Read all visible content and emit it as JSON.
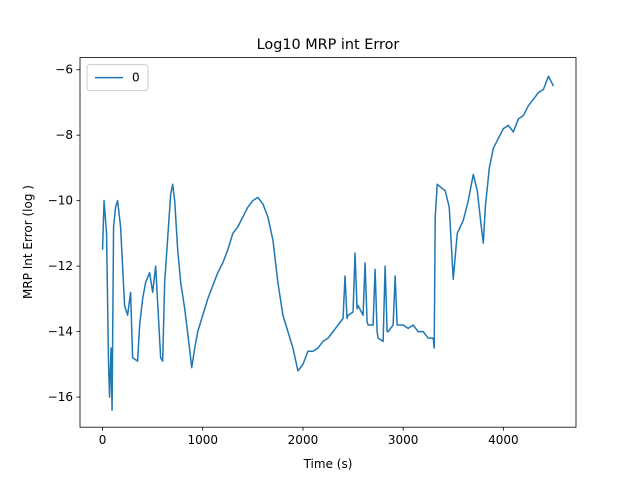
{
  "chart_data": {
    "type": "line",
    "title": "Log10 MRP int Error",
    "x_label": "Time (s)",
    "y_label": "MRP Int Error (log )",
    "x": [
      0,
      15,
      40,
      60,
      70,
      85,
      95,
      110,
      130,
      150,
      180,
      200,
      220,
      250,
      280,
      300,
      350,
      370,
      400,
      430,
      470,
      500,
      530,
      580,
      600,
      620,
      680,
      700,
      720,
      750,
      780,
      820,
      860,
      890,
      920,
      950,
      1000,
      1050,
      1100,
      1150,
      1200,
      1250,
      1300,
      1350,
      1400,
      1450,
      1500,
      1550,
      1600,
      1650,
      1700,
      1750,
      1800,
      1850,
      1900,
      1950,
      2000,
      2050,
      2100,
      2150,
      2200,
      2250,
      2300,
      2350,
      2400,
      2420,
      2440,
      2450,
      2500,
      2520,
      2540,
      2550,
      2600,
      2620,
      2640,
      2650,
      2700,
      2720,
      2740,
      2750,
      2800,
      2820,
      2840,
      2850,
      2900,
      2920,
      2940,
      2950,
      3000,
      3050,
      3100,
      3150,
      3200,
      3250,
      3300,
      3310,
      3320,
      3340,
      3380,
      3420,
      3460,
      3500,
      3540,
      3600,
      3650,
      3700,
      3740,
      3780,
      3800,
      3820,
      3860,
      3900,
      3950,
      4000,
      4050,
      4100,
      4150,
      4200,
      4250,
      4300,
      4350,
      4400,
      4450,
      4500
    ],
    "series": [
      {
        "name": "0",
        "color": "#1f77b4",
        "values": [
          -11.5,
          -10.0,
          -11.0,
          -15.0,
          -16.0,
          -14.5,
          -16.4,
          -10.8,
          -10.2,
          -10.0,
          -10.8,
          -12.0,
          -13.2,
          -13.5,
          -12.8,
          -14.8,
          -14.9,
          -13.8,
          -13.0,
          -12.5,
          -12.2,
          -12.8,
          -12.0,
          -14.8,
          -14.9,
          -12.5,
          -9.8,
          -9.5,
          -10.0,
          -11.5,
          -12.5,
          -13.3,
          -14.3,
          -15.1,
          -14.5,
          -14.0,
          -13.5,
          -13.0,
          -12.6,
          -12.2,
          -11.9,
          -11.5,
          -11.0,
          -10.8,
          -10.5,
          -10.2,
          -10.0,
          -9.9,
          -10.1,
          -10.5,
          -11.2,
          -12.5,
          -13.5,
          -14.0,
          -14.5,
          -15.2,
          -15.0,
          -14.6,
          -14.6,
          -14.5,
          -14.3,
          -14.2,
          -14.0,
          -13.8,
          -13.6,
          -12.3,
          -13.6,
          -13.5,
          -13.4,
          -11.6,
          -13.3,
          -13.2,
          -13.5,
          -11.9,
          -13.7,
          -13.8,
          -13.8,
          -12.1,
          -14.0,
          -14.2,
          -14.3,
          -12.0,
          -14.0,
          -14.0,
          -13.8,
          -12.3,
          -13.8,
          -13.8,
          -13.8,
          -13.9,
          -13.8,
          -14.0,
          -14.0,
          -14.2,
          -14.2,
          -14.5,
          -10.5,
          -9.5,
          -9.6,
          -9.7,
          -10.2,
          -12.4,
          -11.0,
          -10.6,
          -10.0,
          -9.2,
          -9.7,
          -10.8,
          -11.3,
          -10.2,
          -9.0,
          -8.4,
          -8.1,
          -7.8,
          -7.7,
          -7.9,
          -7.5,
          -7.4,
          -7.1,
          -6.9,
          -6.7,
          -6.6,
          -6.2,
          -6.5
        ]
      }
    ],
    "xlim": [
      -225,
      4725
    ],
    "ylim": [
      -16.92,
      -5.63
    ],
    "xticks": [
      0,
      1000,
      2000,
      3000,
      4000
    ],
    "yticks": [
      {
        "value": -16,
        "label": "−16"
      },
      {
        "value": -14,
        "label": "−14"
      },
      {
        "value": -12,
        "label": "−12"
      },
      {
        "value": -10,
        "label": "−10"
      },
      {
        "value": -8,
        "label": "−8"
      },
      {
        "value": -6,
        "label": "−6"
      }
    ],
    "legend": "upper left"
  }
}
